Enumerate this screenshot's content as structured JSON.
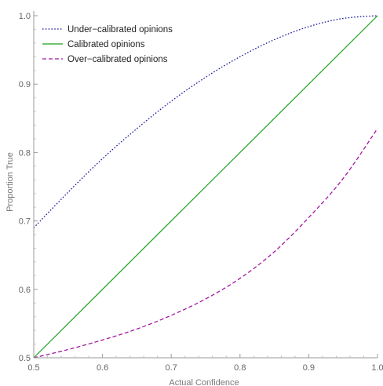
{
  "chart_data": {
    "type": "line",
    "title": "",
    "xlabel": "Actual Confidence",
    "ylabel": "Proportion True",
    "xlim": [
      0.5,
      1.0
    ],
    "ylim": [
      0.5,
      1.0
    ],
    "x_ticks": [
      0.5,
      0.6,
      0.7,
      0.8,
      0.9,
      1.0
    ],
    "y_ticks": [
      0.5,
      0.6,
      0.7,
      0.8,
      0.9,
      1.0
    ],
    "x_tick_labels": [
      "0.5",
      "0.6",
      "0.7",
      "0.8",
      "0.9",
      "1.0"
    ],
    "y_tick_labels": [
      "0.5",
      "0.6",
      "0.7",
      "0.8",
      "0.9",
      "1.0"
    ],
    "grid": false,
    "legend_position": "top-left",
    "series": [
      {
        "name": "Under−calibrated opinions",
        "style": "dotted",
        "color": "#1a1aa0",
        "x": [
          0.5,
          0.55,
          0.6,
          0.65,
          0.7,
          0.75,
          0.8,
          0.85,
          0.9,
          0.95,
          1.0
        ],
        "y": [
          0.69,
          0.742,
          0.791,
          0.835,
          0.875,
          0.91,
          0.94,
          0.965,
          0.984,
          0.996,
          1.0
        ]
      },
      {
        "name": "Calibrated opinions",
        "style": "solid",
        "color": "#1aa01a",
        "x": [
          0.5,
          1.0
        ],
        "y": [
          0.5,
          1.0
        ]
      },
      {
        "name": "Over−calibrated opinions",
        "style": "dashed",
        "color": "#a01aa0",
        "x": [
          0.5,
          0.55,
          0.6,
          0.65,
          0.7,
          0.75,
          0.8,
          0.85,
          0.9,
          0.95,
          1.0
        ],
        "y": [
          0.5,
          0.512,
          0.526,
          0.542,
          0.562,
          0.586,
          0.616,
          0.655,
          0.705,
          0.762,
          0.835
        ]
      }
    ]
  }
}
